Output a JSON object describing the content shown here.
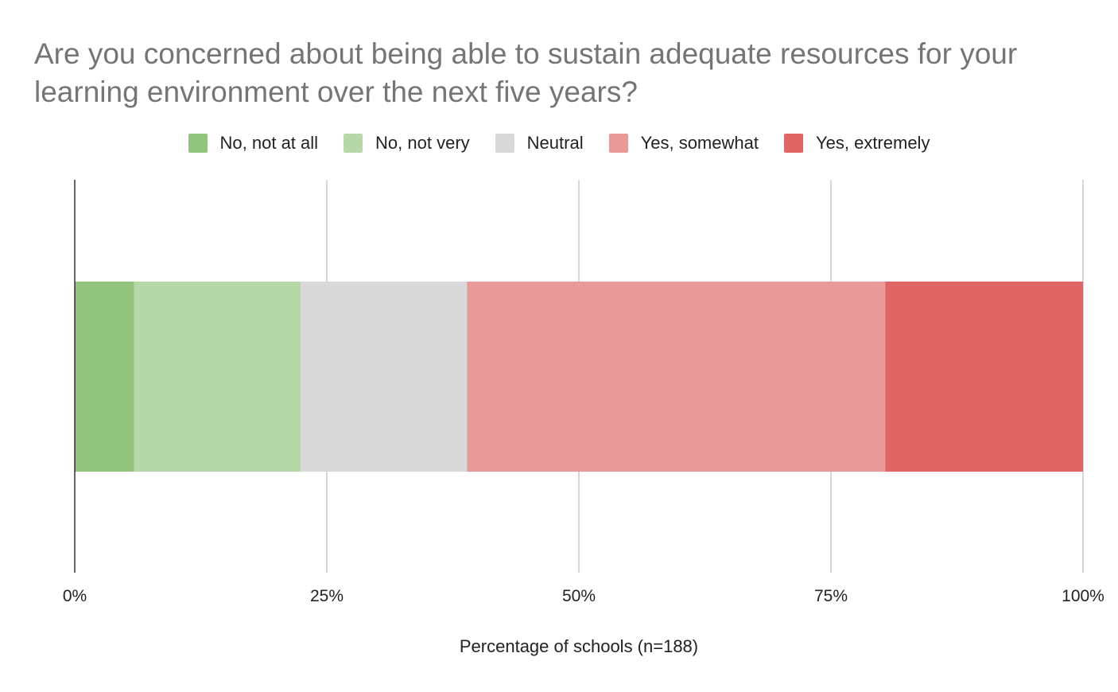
{
  "chart_data": {
    "type": "bar",
    "orientation": "horizontal",
    "stacked": true,
    "stack_mode": "percent",
    "title": "Are you concerned about being able to sustain adequate resources for your learning environment over the next five years?",
    "xlabel": "Percentage of schools (n=188)",
    "ylabel": "",
    "xlim": [
      0,
      100
    ],
    "x_ticks": [
      "0%",
      "25%",
      "50%",
      "75%",
      "100%"
    ],
    "x_tick_values": [
      0,
      25,
      50,
      75,
      100
    ],
    "grid": true,
    "legend_position": "top",
    "categories": [
      ""
    ],
    "series": [
      {
        "name": "No, not at all",
        "values": [
          5.9
        ],
        "color": "#93c47d"
      },
      {
        "name": "No, not very",
        "values": [
          16.5
        ],
        "color": "#b6d7a8"
      },
      {
        "name": "Neutral",
        "values": [
          16.5
        ],
        "color": "#d9d9d9"
      },
      {
        "name": "Yes, somewhat",
        "values": [
          41.5
        ],
        "color": "#ea9999"
      },
      {
        "name": "Yes, extremely",
        "values": [
          19.6
        ],
        "color": "#e06666"
      }
    ]
  }
}
